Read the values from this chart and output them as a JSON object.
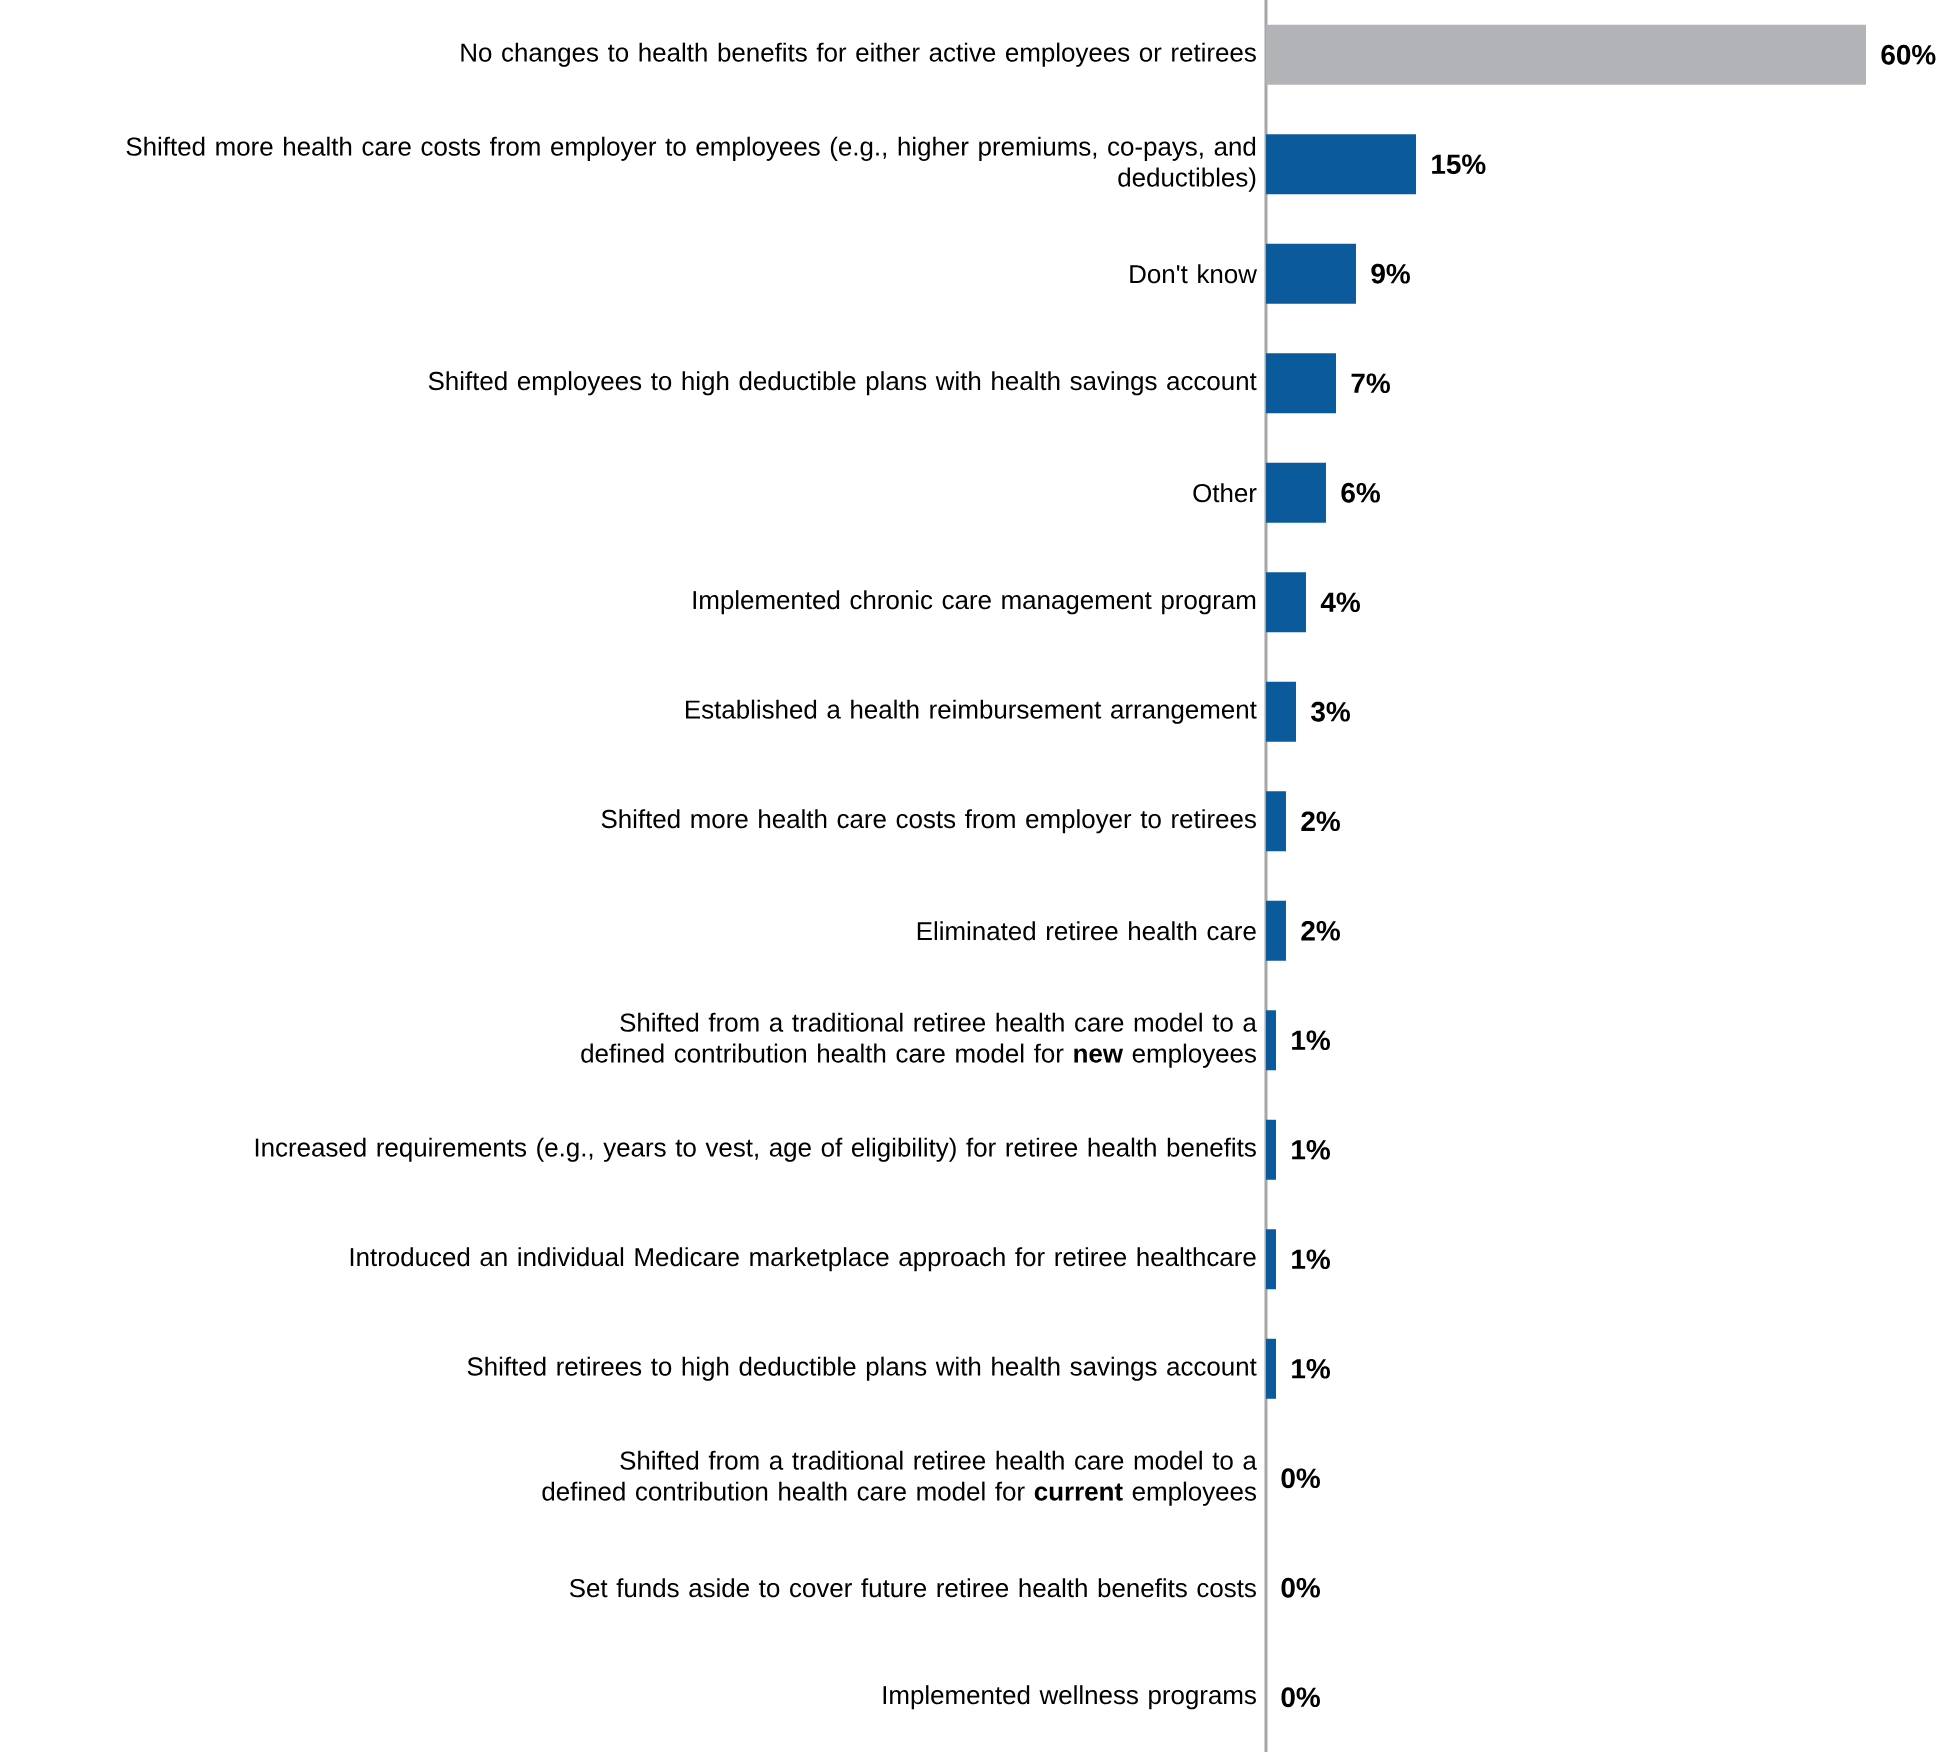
{
  "chart_data": {
    "type": "bar",
    "orientation": "horizontal",
    "categories": [
      "No changes to health benefits for either active employees or retirees",
      "Shifted more health care costs from employer to employees (e.g., higher premiums, co-pays, and deductibles)",
      "Don't know",
      "Shifted employees to high deductible plans with health savings account",
      "Other",
      "Implemented chronic care management program",
      "Established a health reimbursement arrangement",
      "Shifted more health care costs from employer to retirees",
      "Eliminated retiree health care",
      "Shifted from a traditional retiree health care model to a defined contribution health care model for **new** employees",
      "Increased requirements (e.g., years to vest, age of eligibility) for retiree health benefits",
      "Introduced an individual Medicare marketplace approach for retiree healthcare",
      "Shifted retirees to high deductible plans with health savings account",
      "Shifted from a traditional retiree health care model to a defined contribution health care model for **current** employees",
      "Set funds aside to cover future retiree health benefits costs",
      "Implemented wellness programs"
    ],
    "values": [
      60,
      15,
      9,
      7,
      6,
      4,
      3,
      2,
      2,
      1,
      1,
      1,
      1,
      0,
      0,
      0
    ],
    "value_labels": [
      "60%",
      "15%",
      "9%",
      "7%",
      "6%",
      "4%",
      "3%",
      "2%",
      "2%",
      "1%",
      "1%",
      "1%",
      "1%",
      "0%",
      "0%",
      "0%"
    ],
    "colors": [
      "#b1b3b6",
      "#0a5a9c",
      "#0a5a9c",
      "#0a5a9c",
      "#0a5a9c",
      "#0a5a9c",
      "#0a5a9c",
      "#0a5a9c",
      "#0a5a9c",
      "#0a5a9c",
      "#0a5a9c",
      "#0a5a9c",
      "#0a5a9c",
      "#0a5a9c",
      "#0a5a9c",
      "#0a5a9c"
    ]
  }
}
